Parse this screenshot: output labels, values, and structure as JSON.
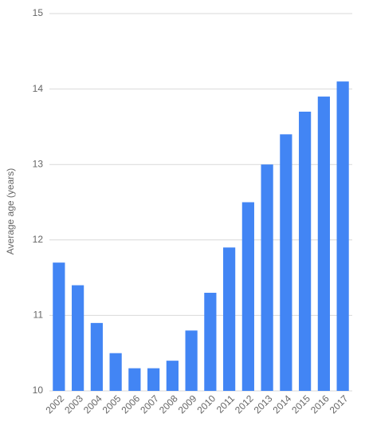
{
  "chart_data": {
    "type": "bar",
    "y_label": "Average age (years)",
    "categories": [
      "2002",
      "2003",
      "2004",
      "2005",
      "2006",
      "2007",
      "2008",
      "2009",
      "2010",
      "2011",
      "2012",
      "2013",
      "2014",
      "2015",
      "2016",
      "2017"
    ],
    "values": [
      11.7,
      11.4,
      10.9,
      10.5,
      10.3,
      10.3,
      10.4,
      10.8,
      11.3,
      11.9,
      12.5,
      13.0,
      13.4,
      13.7,
      13.9,
      14.1
    ],
    "color": "#4285f4",
    "ylim": [
      10,
      15
    ],
    "yticks": [
      10,
      11,
      12,
      13,
      14,
      15
    ],
    "grid": true
  }
}
